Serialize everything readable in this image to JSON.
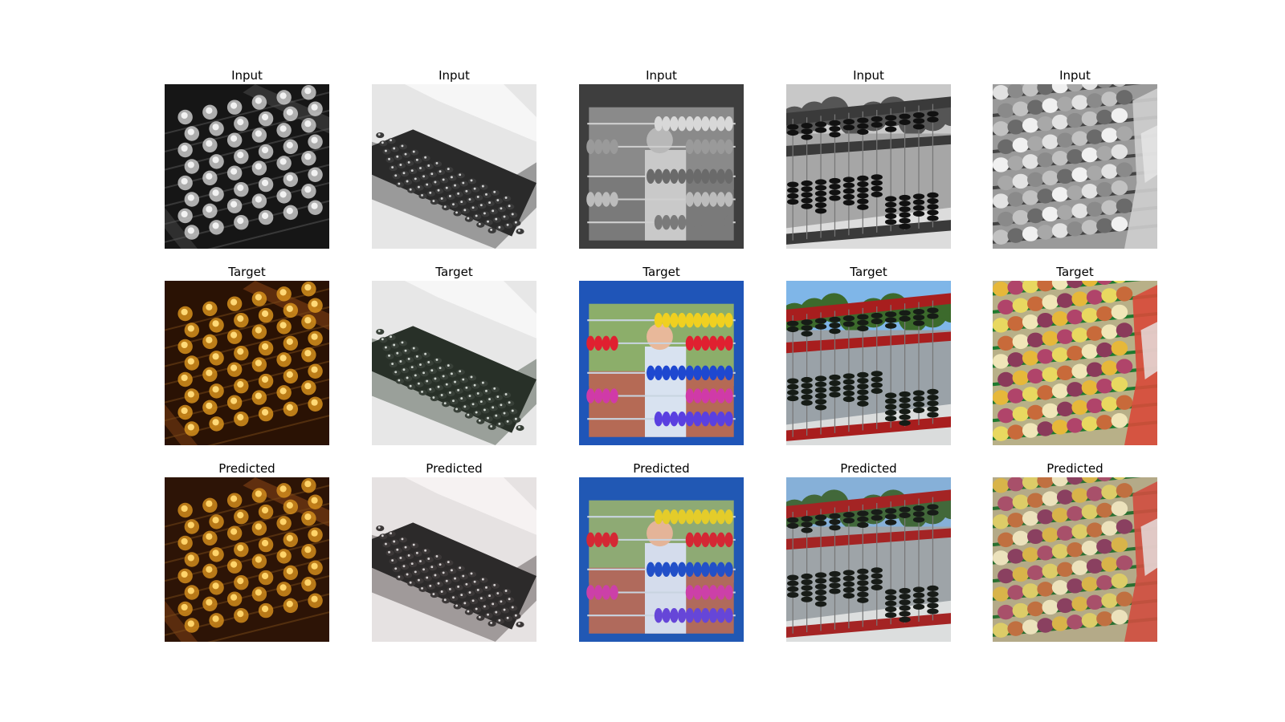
{
  "figure": {
    "columns": [
      {
        "subject": "abacus close-up with glowing beads",
        "input": {
          "title": "Input",
          "palette": {
            "bg": "#161616",
            "frame": "#3a3a3a",
            "bead": "#c8c8c8",
            "glow": "#f2f2f2",
            "rod": "#5a5a5a"
          }
        },
        "target": {
          "title": "Target",
          "palette": {
            "bg": "#2a1204",
            "frame": "#6b3410",
            "bead": "#d6901c",
            "glow": "#ffd977",
            "rod": "#7a4a18"
          }
        },
        "predicted": {
          "title": "Predicted",
          "palette": {
            "bg": "#2d1406",
            "frame": "#6d3612",
            "bead": "#d18b1c",
            "glow": "#ffd46a",
            "rod": "#7a4a18"
          }
        }
      },
      {
        "subject": "black abacus on desk",
        "input": {
          "title": "Input",
          "palette": {
            "bg": "#e6e6e6",
            "paper": "#f6f6f6",
            "frame": "#2a2a2a",
            "bead": "#3a3a3a",
            "glow": "#d2d2d2",
            "edge": "#9a9a9a"
          }
        },
        "target": {
          "title": "Target",
          "palette": {
            "bg": "#e7e7e7",
            "paper": "#f6f6f6",
            "frame": "#283028",
            "bead": "#384038",
            "glow": "#d0d6d0",
            "edge": "#9aa09a"
          }
        },
        "predicted": {
          "title": "Predicted",
          "palette": {
            "bg": "#e6e2e2",
            "paper": "#f6f2f2",
            "frame": "#2c2a2a",
            "bead": "#3c3838",
            "glow": "#d4d0d0",
            "edge": "#a09a9a"
          }
        }
      },
      {
        "subject": "child behind colourful abacus",
        "input": {
          "title": "Input",
          "palette": {
            "frame": "#3e3e3e",
            "bg": "#8a8a8a",
            "ground": "#7a7a7a",
            "rows": [
              "#d8d8d8",
              "#9a9a9a",
              "#6a6a6a",
              "#bcbcbc",
              "#7a7a7a"
            ],
            "rod": "#cfcfcf",
            "child": "#c9c9c9",
            "head": "#b8b8b8"
          }
        },
        "target": {
          "title": "Target",
          "palette": {
            "frame": "#1f55b8",
            "bg": "#8cae6a",
            "ground": "#b56a55",
            "rows": [
              "#f0d020",
              "#e02030",
              "#1e48d0",
              "#d03aa8",
              "#5a40e0"
            ],
            "rod": "#c8d4e0",
            "child": "#d8e2f0",
            "head": "#e8b89a"
          }
        },
        "predicted": {
          "title": "Predicted",
          "palette": {
            "frame": "#2158b4",
            "bg": "#8eaa74",
            "ground": "#b06a5c",
            "rows": [
              "#e4cc2a",
              "#d42834",
              "#2250c8",
              "#cc40a8",
              "#6646d8"
            ],
            "rod": "#c8d4e0",
            "child": "#d4dcec",
            "head": "#e4b498"
          }
        }
      },
      {
        "subject": "large outdoor abacus along road",
        "input": {
          "title": "Input",
          "palette": {
            "sky": "#c8c8c8",
            "trees": "#555555",
            "road": "#a6a6a6",
            "bar": "#3a3a3a",
            "bead": "#111111",
            "sidewalk": "#dcdcdc"
          }
        },
        "target": {
          "title": "Target",
          "palette": {
            "sky": "#7fb6e8",
            "trees": "#3c6a2c",
            "road": "#9aa2a8",
            "bar": "#a81e1e",
            "bead": "#161c16",
            "sidewalk": "#dadcdc"
          }
        },
        "predicted": {
          "title": "Predicted",
          "palette": {
            "sky": "#86b0d8",
            "trees": "#42683a",
            "road": "#9ea4a8",
            "bar": "#a42424",
            "bead": "#181c18",
            "sidewalk": "#dcdede"
          }
        }
      },
      {
        "subject": "colourful abacus with stickers",
        "input": {
          "title": "Input",
          "palette": {
            "bg": "#9a9a9a",
            "beads": [
              "#e2e2e2",
              "#8a8a8a",
              "#c2c2c2",
              "#6a6a6a",
              "#f0f0f0",
              "#a8a8a8"
            ],
            "rod": "#444444",
            "sticker": "#cfcfcf"
          }
        },
        "target": {
          "title": "Target",
          "palette": {
            "bg": "#b8b088",
            "beads": [
              "#e6b83a",
              "#b0446a",
              "#e8d860",
              "#c86a3a",
              "#f0e6b8",
              "#8a3a5a"
            ],
            "rod": "#1e7a2e",
            "sticker": "#d84a3a"
          }
        },
        "predicted": {
          "title": "Predicted",
          "palette": {
            "bg": "#b4aa88",
            "beads": [
              "#d8b44a",
              "#a8506a",
              "#dccc68",
              "#c07040",
              "#ece2bc",
              "#8a4060"
            ],
            "rod": "#2a7030",
            "sticker": "#d04e40"
          }
        }
      }
    ]
  }
}
